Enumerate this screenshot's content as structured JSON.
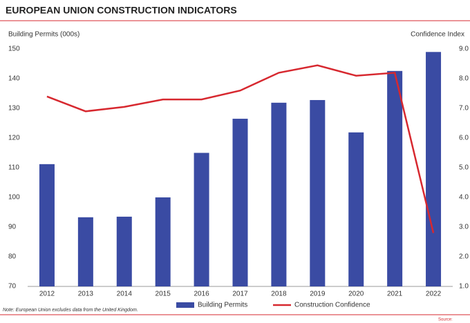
{
  "chart_data": {
    "type": "bar_line",
    "title": "EUROPEAN UNION CONSTRUCTION INDICATORS",
    "y_label": "Building Permits (000s)",
    "y2_label": "Confidence Index",
    "note": "Note: European Union excludes data from the United Kingdom.",
    "source": "Source:",
    "categories": [
      "2012",
      "2013",
      "2014",
      "2015",
      "2016",
      "2017",
      "2018",
      "2019",
      "2020",
      "2021",
      "2022"
    ],
    "series": [
      {
        "name": "Building Permits",
        "color": "#3a4ba3",
        "type": "bar",
        "values": [
          111.2,
          93.3,
          93.5,
          100,
          115,
          126.5,
          131.9,
          132.8,
          121.9,
          142.6,
          149
        ]
      },
      {
        "name": "Construction Confidence",
        "color": "#d7282f",
        "type": "line",
        "axis": "y2",
        "values": [
          7.4,
          6.9,
          7.05,
          7.3,
          7.3,
          7.6,
          8.2,
          8.45,
          8.1,
          8.2,
          2.8
        ]
      }
    ],
    "ylim": [
      70,
      150
    ],
    "yticks": [
      70,
      80,
      90,
      100,
      110,
      120,
      130,
      140,
      150
    ],
    "y2lim": [
      1,
      9
    ],
    "y2ticks": [
      {
        "value": 1,
        "label": "1.0"
      },
      {
        "value": 2,
        "label": "2.0"
      },
      {
        "value": 3,
        "label": "3.0"
      },
      {
        "value": 4,
        "label": "4.0"
      },
      {
        "value": 5,
        "label": "5.0"
      },
      {
        "value": 6,
        "label": "6.0"
      },
      {
        "value": 7,
        "label": "7.0"
      },
      {
        "value": 8,
        "label": "8.0"
      },
      {
        "value": 9,
        "label": "9.0"
      }
    ],
    "legend": "bottom"
  }
}
